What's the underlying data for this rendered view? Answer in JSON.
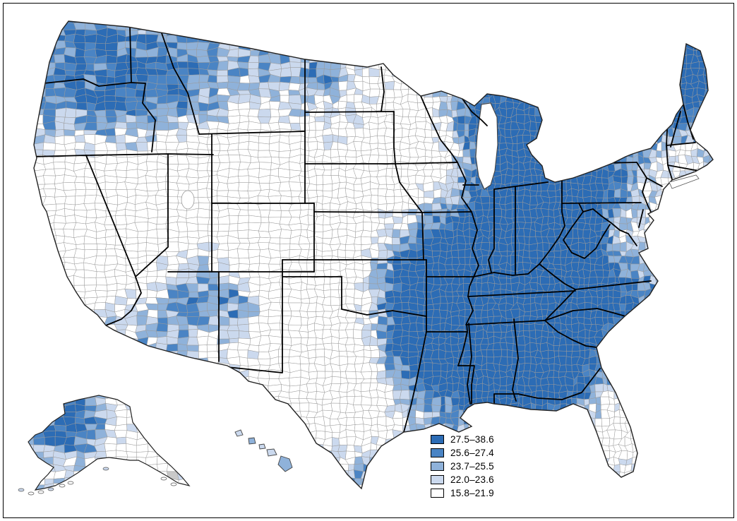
{
  "figure": {
    "type": "choropleth-map",
    "region": "United States counties",
    "insets": [
      "Alaska",
      "Hawaii"
    ],
    "legend": {
      "items": [
        {
          "label": "27.5–38.6",
          "color": "#2c6cb5"
        },
        {
          "label": "25.6–27.4",
          "color": "#4a84c4"
        },
        {
          "label": "23.7–25.5",
          "color": "#8fb2da"
        },
        {
          "label": "22.0–23.6",
          "color": "#cbd9ee"
        },
        {
          "label": "15.8–21.9",
          "color": "#ffffff"
        }
      ]
    },
    "map_colors": {
      "county_border": "#9b9b9b",
      "state_border": "#000000",
      "water": "#ffffff",
      "no_data": "#c9c9c9"
    }
  }
}
